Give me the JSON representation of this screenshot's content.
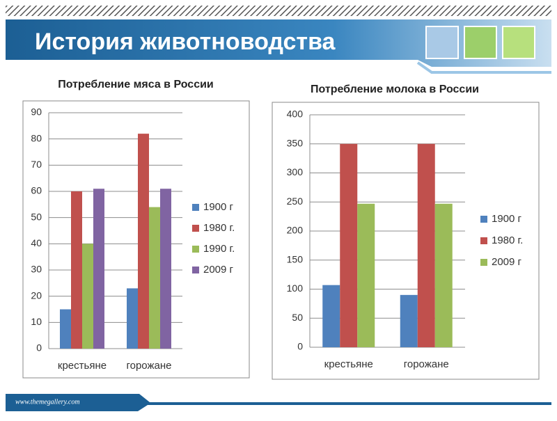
{
  "title": "История животноводства",
  "footer": "www.themegallery.com",
  "chart_data": [
    {
      "type": "bar",
      "title": "Потребление мяса в России",
      "categories": [
        "крестьяне",
        "горожане"
      ],
      "series": [
        {
          "name": "1900 г",
          "color": "#4f81bd",
          "values": [
            15,
            23
          ]
        },
        {
          "name": "1980 г.",
          "color": "#c0504d",
          "values": [
            60,
            82
          ]
        },
        {
          "name": "1990 г.",
          "color": "#9bbb59",
          "values": [
            40,
            54
          ]
        },
        {
          "name": "2009 г",
          "color": "#8064a2",
          "values": [
            61,
            61
          ]
        }
      ],
      "ylim": [
        0,
        90
      ],
      "yticks": [
        0,
        10,
        20,
        30,
        40,
        50,
        60,
        70,
        80,
        90
      ],
      "grid": true,
      "legend": "right"
    },
    {
      "type": "bar",
      "title": "Потребление молока в России",
      "categories": [
        "крестьяне",
        "горожане"
      ],
      "series": [
        {
          "name": "1900 г",
          "color": "#4f81bd",
          "values": [
            107,
            90
          ]
        },
        {
          "name": "1980 г.",
          "color": "#c0504d",
          "values": [
            350,
            350
          ]
        },
        {
          "name": "2009 г",
          "color": "#9bbb59",
          "values": [
            247,
            247
          ]
        }
      ],
      "ylim": [
        0,
        400
      ],
      "yticks": [
        0,
        50,
        100,
        150,
        200,
        250,
        300,
        350,
        400
      ],
      "grid": true,
      "legend": "right"
    }
  ]
}
